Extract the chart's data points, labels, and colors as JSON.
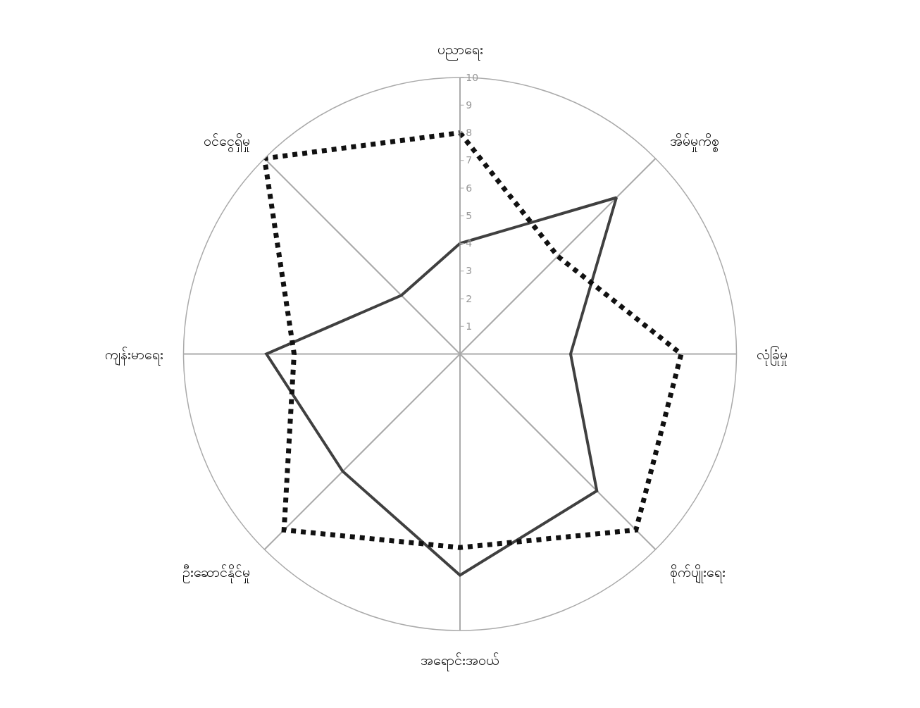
{
  "chart_data": {
    "type": "radar",
    "categories": [
      "ပညာရေး",
      "အိမ်မှုကိစ္စ",
      "လုံခြုံမှု",
      "စိုက်ပျိုးရေး",
      "အရောင်းအဝယ်",
      "ဦးဆောင်နိုင်မှု",
      "ကျန်းမာရေး",
      "ဝင်ငွေရှိမှု"
    ],
    "series": [
      {
        "color": "#404040",
        "line_style": "solid",
        "values": [
          4,
          8,
          4,
          7,
          8,
          6,
          7,
          3
        ]
      },
      {
        "color": "#111111",
        "line_style": "dotted",
        "values": [
          8,
          5,
          8,
          9,
          7,
          9,
          6,
          10
        ]
      }
    ],
    "ylim": [
      0,
      10
    ],
    "yticks": [
      1,
      2,
      3,
      4,
      5,
      6,
      7,
      8,
      9,
      10
    ],
    "grid": "x",
    "marker": "none"
  }
}
